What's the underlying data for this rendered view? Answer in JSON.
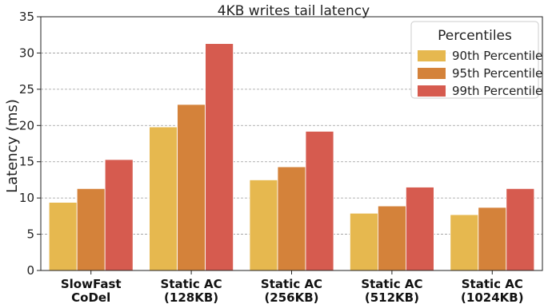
{
  "chart_data": {
    "type": "bar",
    "title": "4KB writes tail latency",
    "xlabel": "",
    "ylabel": "Latency (ms)",
    "ylim": [
      0,
      35
    ],
    "yticks": [
      0,
      5,
      10,
      15,
      20,
      25,
      30,
      35
    ],
    "grid": "horizontal-dashed",
    "legend": {
      "title": "Percentiles",
      "position": "top-right"
    },
    "categories": [
      [
        "SlowFast",
        "CoDel"
      ],
      [
        "Static AC",
        "(128KB)"
      ],
      [
        "Static AC",
        "(256KB)"
      ],
      [
        "Static AC",
        "(512KB)"
      ],
      [
        "Static AC",
        "(1024KB)"
      ]
    ],
    "series": [
      {
        "name": "90th Percentile",
        "color": "#e6b84f",
        "values": [
          9.4,
          19.8,
          12.5,
          7.9,
          7.7
        ]
      },
      {
        "name": "95th Percentile",
        "color": "#d4823a",
        "values": [
          11.3,
          22.9,
          14.3,
          8.9,
          8.7
        ]
      },
      {
        "name": "99th Percentile",
        "color": "#d65b4f",
        "values": [
          15.3,
          31.3,
          19.2,
          11.5,
          11.3
        ]
      }
    ]
  }
}
